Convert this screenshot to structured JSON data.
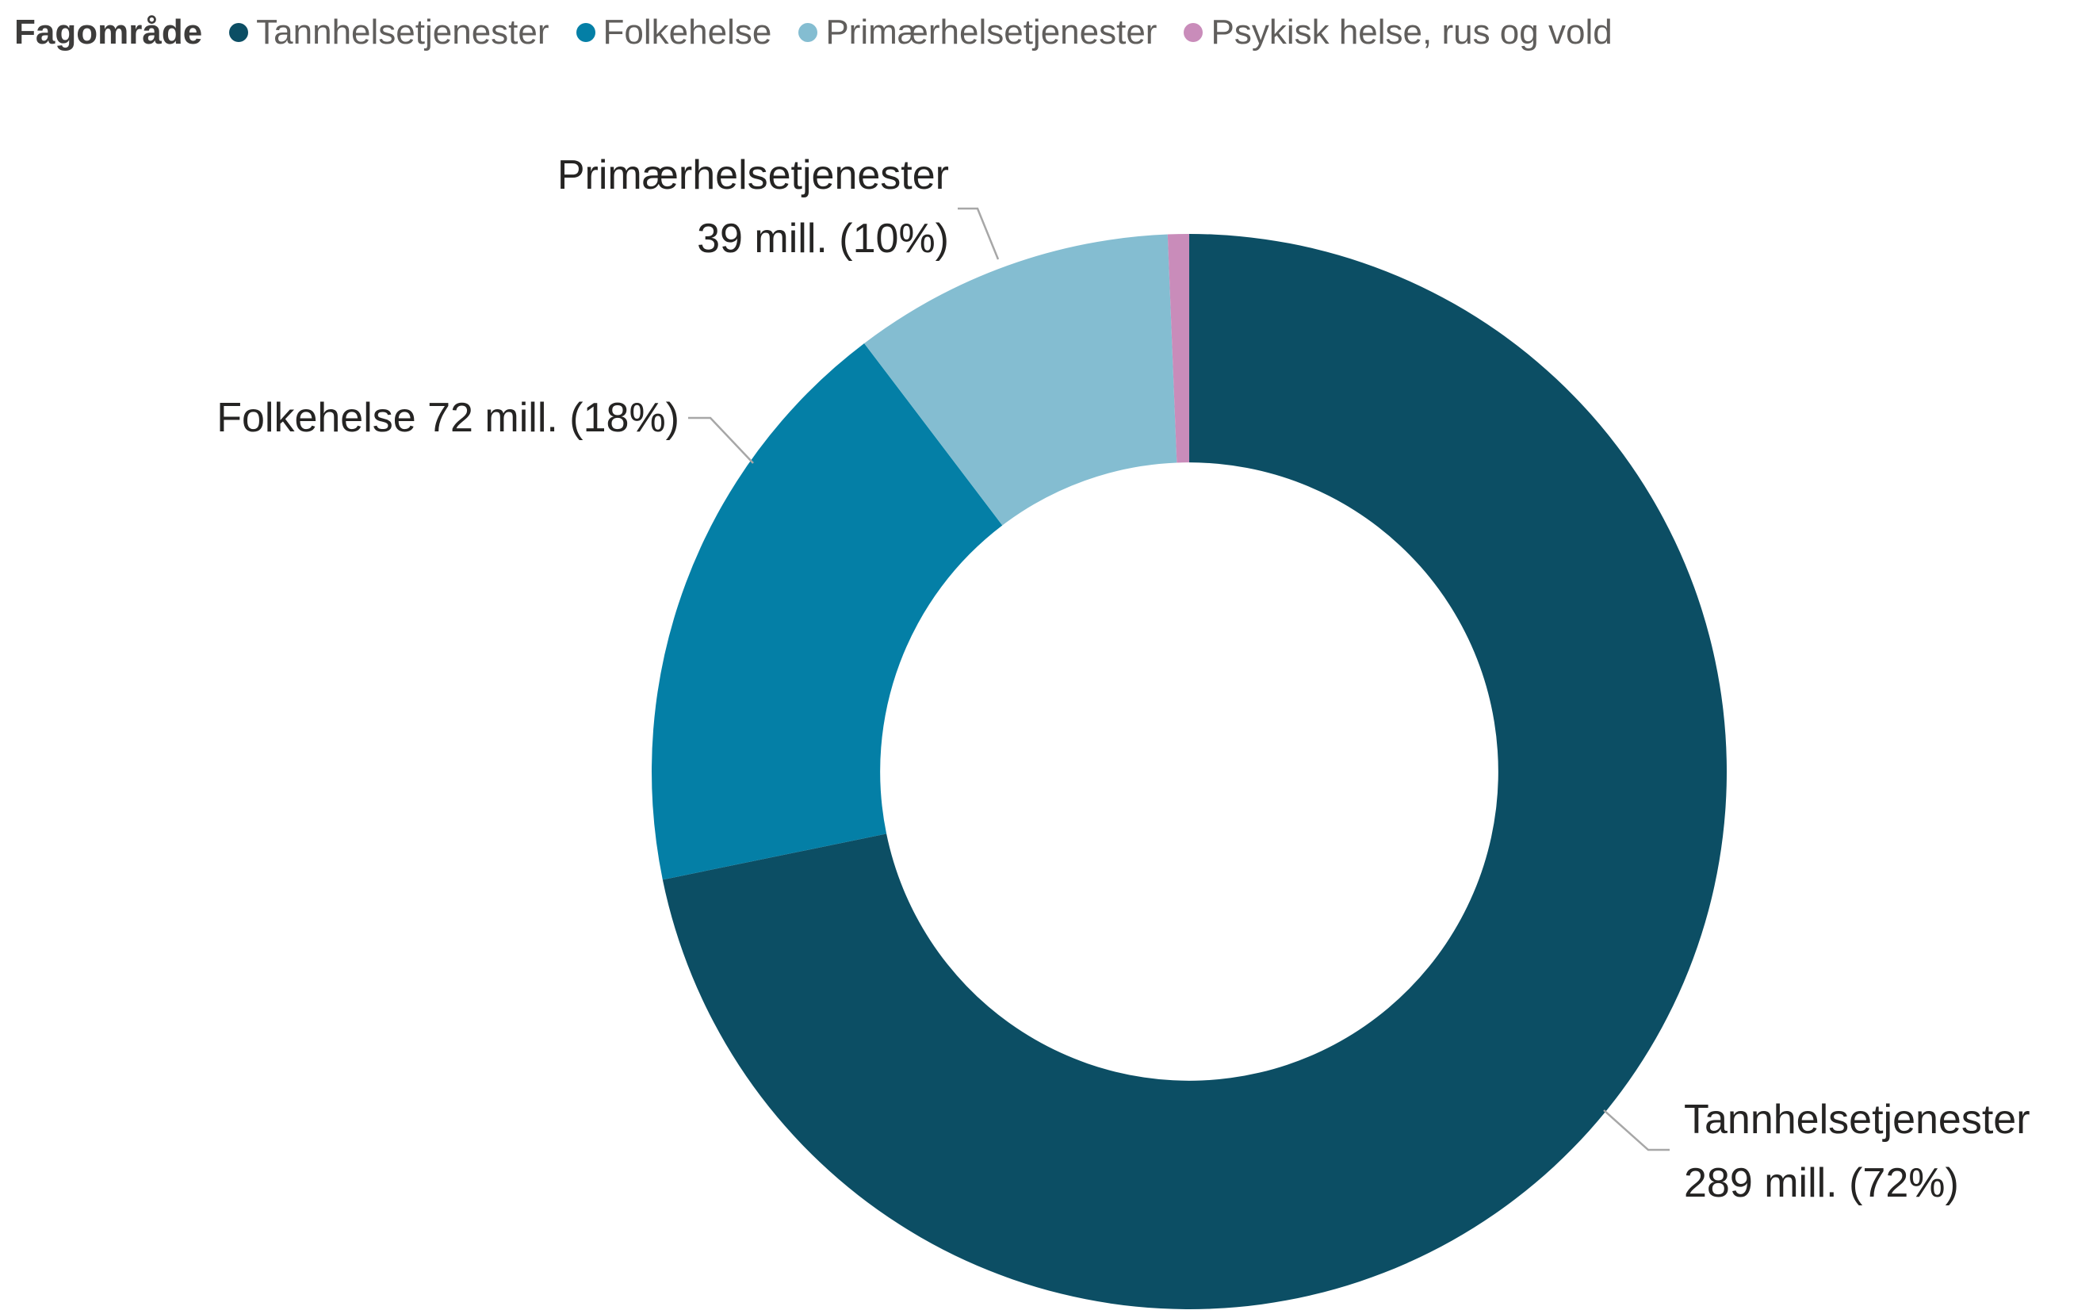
{
  "page": {
    "background": "#ffffff"
  },
  "legend": {
    "title": "Fagområde",
    "position": "top-left",
    "items": [
      {
        "label": "Tannhelsetjenester",
        "color": "#0c4e64"
      },
      {
        "label": "Folkehelse",
        "color": "#047fa6"
      },
      {
        "label": "Primærhelsetjenester",
        "color": "#84bdd1"
      },
      {
        "label": "Psykisk helse, rus og vold",
        "color": "#c98cba"
      }
    ]
  },
  "callouts": {
    "primaerhelsetjenester": {
      "line1": "Primærhelsetjenester",
      "line2": "39 mill. (10%)"
    },
    "folkehelse": {
      "line1": "Folkehelse 72 mill. (18%)"
    },
    "tannhelsetjenester": {
      "line1": "Tannhelsetjenester",
      "line2": "289 mill. (72%)"
    }
  },
  "chart_data": {
    "type": "pie",
    "subtype": "donut",
    "legend_title": "Fagområde",
    "legend_position": "top-left",
    "unit": "mill.",
    "start_angle_deg": 0,
    "clockwise": true,
    "inner_radius_ratio": 0.575,
    "leader_line_color": "#a7a7a7",
    "label_color": "#252423",
    "slices": [
      {
        "label": "Tannhelsetjenester",
        "value_mill": 289,
        "percent": 72,
        "color": "#0c4e64",
        "angle_deg": 258.4,
        "data_label": "Tannhelsetjenester 289 mill. (72%)"
      },
      {
        "label": "Folkehelse",
        "value_mill": 72,
        "percent": 18,
        "color": "#047fa6",
        "angle_deg": 64.4,
        "data_label": "Folkehelse 72 mill. (18%)"
      },
      {
        "label": "Primærhelsetjenester",
        "value_mill": 39,
        "percent": 10,
        "color": "#84bdd1",
        "angle_deg": 34.9,
        "data_label": "Primærhelsetjenester 39 mill. (10%)"
      },
      {
        "label": "Psykisk helse, rus og vold",
        "value_mill": null,
        "percent": null,
        "color": "#c98cba",
        "angle_deg": 2.3,
        "data_label": null
      }
    ]
  }
}
